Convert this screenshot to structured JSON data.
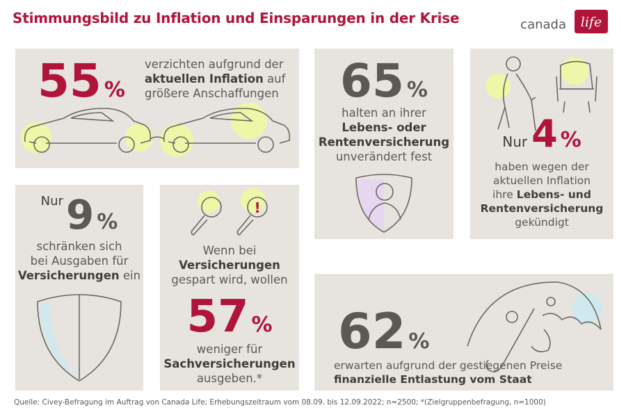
{
  "header": {
    "title": "Stimmungsbild zu Inflation und Einsparungen in der Krise",
    "logo_text": "canada",
    "logo_mark": "life"
  },
  "stat_55": {
    "value": "55",
    "unit": "%",
    "line1": "verzichten aufgrund der",
    "line2_bold": "aktuellen Inflation",
    "line2_rest": " auf",
    "line3": "größere Anschaffungen",
    "icon": "cars-icon"
  },
  "stat_65": {
    "value": "65",
    "unit": "%",
    "line1": "halten an ihrer",
    "line2_bold": "Lebens- oder",
    "line3_bold": "Rentenversicherung",
    "line4": "unverändert fest",
    "icon": "shield-person-icon"
  },
  "stat_4": {
    "prefix": "Nur",
    "value": "4",
    "unit": "%",
    "line1": "haben wegen der",
    "line2": "aktuellen Inflation",
    "line3_rest": "ihre ",
    "line3_bold": "Lebens- und",
    "line4_bold": "Rentenversicherung",
    "line5": "gekündigt",
    "icon": "elderly-armchair-icon"
  },
  "stat_9": {
    "prefix": "Nur",
    "value": "9",
    "unit": "%",
    "line1": "schränken sich",
    "line2": "bei Ausgaben für",
    "line3_bold": "Versicherungen",
    "line3_rest": " ein",
    "icon": "shield-icon"
  },
  "stat_57": {
    "line1": "Wenn bei",
    "line2_bold": "Versicherungen",
    "line3": "gespart wird, wollen",
    "value": "57",
    "unit": "%",
    "line4": "weniger für",
    "line5_bold": "Sachversicherungen",
    "line6": "ausgeben.*",
    "icon": "magnifier-icon"
  },
  "stat_62": {
    "value": "62",
    "unit": "%",
    "line1": "erwarten aufgrund der gestiegenen Preise",
    "line2_bold": "finanzielle Entlastung vom Staat",
    "icon": "umbrella-icon"
  },
  "footer": {
    "source": "Quelle: Civey-Befragung im Auftrag von Canada Life; Erhebungszeitraum vom 08.09. bis 12.09.2022; n=2500; *(Zielgruppenbefragung, n=1000)"
  },
  "colors": {
    "accent_red": "#b0143a",
    "text_grey": "#5b5855",
    "card_bg": "#e7e4df",
    "highlight_yellow": "#eef6a8",
    "highlight_blue": "#cfe9ef",
    "highlight_lilac": "#e6d6f0"
  }
}
